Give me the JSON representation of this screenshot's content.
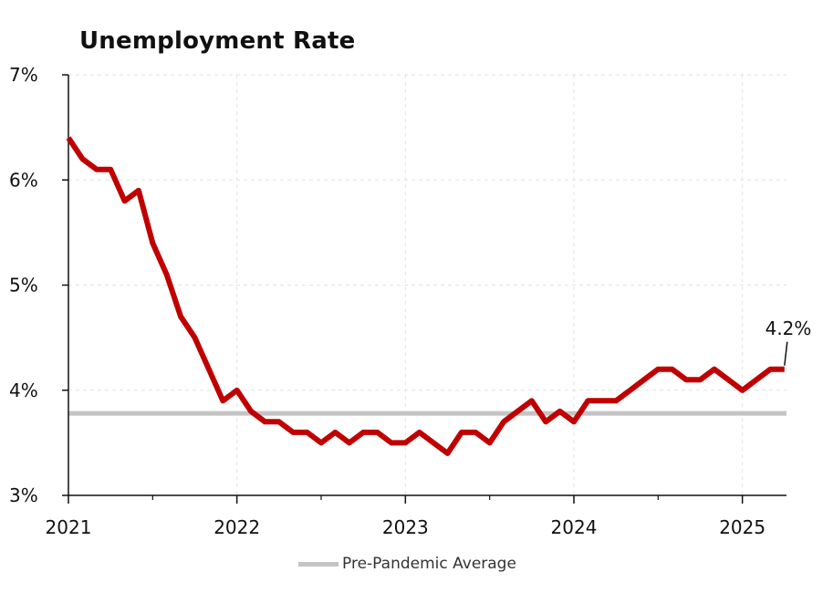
{
  "chart_data": {
    "type": "line",
    "title": "Unemployment Rate",
    "xlabel": "",
    "ylabel": "",
    "x_ticks": [
      "2021",
      "2022",
      "2023",
      "2024",
      "2025"
    ],
    "y_ticks": [
      "3%",
      "4%",
      "5%",
      "6%",
      "7%"
    ],
    "ylim": [
      3,
      7
    ],
    "xlim": [
      "2021-01",
      "2025-04"
    ],
    "grid": true,
    "legend_position": "bottom-center",
    "series": [
      {
        "color": "#c00000",
        "x": [
          "2021-01",
          "2021-02",
          "2021-03",
          "2021-04",
          "2021-05",
          "2021-06",
          "2021-07",
          "2021-08",
          "2021-09",
          "2021-10",
          "2021-11",
          "2021-12",
          "2022-01",
          "2022-02",
          "2022-03",
          "2022-04",
          "2022-05",
          "2022-06",
          "2022-07",
          "2022-08",
          "2022-09",
          "2022-10",
          "2022-11",
          "2022-12",
          "2023-01",
          "2023-02",
          "2023-03",
          "2023-04",
          "2023-05",
          "2023-06",
          "2023-07",
          "2023-08",
          "2023-09",
          "2023-10",
          "2023-11",
          "2023-12",
          "2024-01",
          "2024-02",
          "2024-03",
          "2024-04",
          "2024-05",
          "2024-06",
          "2024-07",
          "2024-08",
          "2024-09",
          "2024-10",
          "2024-11",
          "2024-12",
          "2025-01",
          "2025-02",
          "2025-03",
          "2025-04"
        ],
        "values": [
          6.4,
          6.2,
          6.1,
          6.1,
          5.8,
          5.9,
          5.4,
          5.1,
          4.7,
          4.5,
          4.2,
          3.9,
          4.0,
          3.8,
          3.7,
          3.7,
          3.6,
          3.6,
          3.5,
          3.6,
          3.5,
          3.6,
          3.6,
          3.5,
          3.5,
          3.6,
          3.5,
          3.4,
          3.6,
          3.6,
          3.5,
          3.7,
          3.8,
          3.9,
          3.7,
          3.8,
          3.7,
          3.9,
          3.9,
          3.9,
          4.0,
          4.1,
          4.2,
          4.2,
          4.1,
          4.1,
          4.2,
          4.1,
          4.0,
          4.1,
          4.2,
          4.2
        ]
      },
      {
        "name": "Pre-Pandemic Average",
        "color": "#c4c4c4",
        "values": [
          3.78
        ]
      }
    ],
    "annotation": "4.2%"
  }
}
